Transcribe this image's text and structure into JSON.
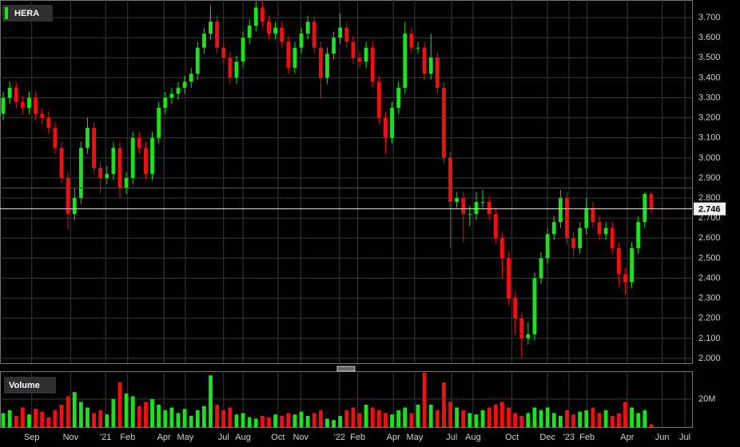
{
  "chart_data": {
    "type": "candlestick",
    "title": "HERA",
    "colors": {
      "up": "#1ee01e",
      "down": "#f01010",
      "grid": "#3a3a3a",
      "reference": "#e01010",
      "last": "#e8e8e8"
    },
    "grid": true,
    "open": [
      3.22,
      3.3,
      3.35,
      3.28,
      3.25,
      3.3,
      3.22,
      3.2,
      3.15,
      3.05,
      2.9,
      2.72,
      2.8,
      3.05,
      3.15,
      2.95,
      2.9,
      2.92,
      3.05,
      2.85,
      2.9,
      3.1,
      3.05,
      2.92,
      3.1,
      3.25,
      3.3,
      3.32,
      3.35,
      3.38,
      3.42,
      3.55,
      3.62,
      3.68,
      3.55,
      3.5,
      3.4,
      3.48,
      3.6,
      3.66,
      3.75,
      3.68,
      3.62,
      3.65,
      3.58,
      3.45,
      3.55,
      3.62,
      3.68,
      3.55,
      3.4,
      3.52,
      3.6,
      3.65,
      3.58,
      3.5,
      3.48,
      3.55,
      3.38,
      3.2,
      3.1,
      3.25,
      3.35,
      3.62,
      3.55,
      3.55,
      3.42,
      3.5,
      3.35,
      3.0,
      2.78,
      2.8,
      2.72,
      2.72,
      2.78,
      2.78,
      2.72,
      2.6,
      2.5,
      2.3,
      2.2,
      2.1,
      2.12,
      2.4,
      2.5,
      2.62,
      2.68,
      2.8,
      2.6,
      2.55,
      2.65,
      2.75,
      2.68,
      2.62,
      2.65,
      2.55,
      2.42,
      2.38,
      2.55,
      2.68,
      2.82
    ],
    "close": [
      3.3,
      3.35,
      3.28,
      3.25,
      3.3,
      3.22,
      3.2,
      3.15,
      3.05,
      2.9,
      2.72,
      2.8,
      3.05,
      3.15,
      2.95,
      2.9,
      2.92,
      3.05,
      2.85,
      2.9,
      3.1,
      3.05,
      2.92,
      3.1,
      3.25,
      3.3,
      3.32,
      3.35,
      3.38,
      3.42,
      3.55,
      3.62,
      3.68,
      3.55,
      3.5,
      3.4,
      3.48,
      3.6,
      3.66,
      3.75,
      3.68,
      3.62,
      3.65,
      3.58,
      3.45,
      3.55,
      3.62,
      3.68,
      3.55,
      3.4,
      3.52,
      3.6,
      3.65,
      3.58,
      3.5,
      3.48,
      3.55,
      3.38,
      3.2,
      3.1,
      3.25,
      3.35,
      3.62,
      3.55,
      3.55,
      3.42,
      3.5,
      3.35,
      3.0,
      2.78,
      2.8,
      2.72,
      2.72,
      2.78,
      2.78,
      2.72,
      2.6,
      2.5,
      2.3,
      2.2,
      2.1,
      2.12,
      2.4,
      2.5,
      2.62,
      2.68,
      2.8,
      2.6,
      2.55,
      2.65,
      2.75,
      2.68,
      2.62,
      2.65,
      2.55,
      2.42,
      2.38,
      2.55,
      2.68,
      2.82,
      2.746
    ],
    "high": [
      3.33,
      3.38,
      3.38,
      3.31,
      3.33,
      3.33,
      3.25,
      3.23,
      3.18,
      3.08,
      2.93,
      2.85,
      3.08,
      3.2,
      3.18,
      2.98,
      2.96,
      3.08,
      3.08,
      2.93,
      3.13,
      3.13,
      3.08,
      3.13,
      3.28,
      3.33,
      3.35,
      3.38,
      3.41,
      3.45,
      3.58,
      3.65,
      3.76,
      3.71,
      3.58,
      3.53,
      3.51,
      3.63,
      3.69,
      3.78,
      3.78,
      3.71,
      3.68,
      3.68,
      3.61,
      3.58,
      3.65,
      3.71,
      3.71,
      3.58,
      3.55,
      3.63,
      3.72,
      3.68,
      3.61,
      3.53,
      3.58,
      3.58,
      3.41,
      3.23,
      3.28,
      3.38,
      3.68,
      3.65,
      3.58,
      3.58,
      3.62,
      3.53,
      3.38,
      3.03,
      2.83,
      2.83,
      2.76,
      2.83,
      2.84,
      2.81,
      2.75,
      2.63,
      2.53,
      2.33,
      2.23,
      2.18,
      2.43,
      2.53,
      2.65,
      2.71,
      2.84,
      2.83,
      2.63,
      2.68,
      2.8,
      2.78,
      2.71,
      2.68,
      2.68,
      2.58,
      2.45,
      2.58,
      2.71,
      2.83,
      2.83
    ],
    "low": [
      3.19,
      3.27,
      3.25,
      3.22,
      3.22,
      3.19,
      3.17,
      3.12,
      3.02,
      2.87,
      2.64,
      2.69,
      2.77,
      3.02,
      2.92,
      2.82,
      2.87,
      2.89,
      2.8,
      2.82,
      2.87,
      3.02,
      2.89,
      2.89,
      3.07,
      3.22,
      3.27,
      3.29,
      3.32,
      3.35,
      3.39,
      3.52,
      3.59,
      3.52,
      3.47,
      3.37,
      3.37,
      3.45,
      3.57,
      3.63,
      3.65,
      3.59,
      3.59,
      3.55,
      3.42,
      3.42,
      3.52,
      3.59,
      3.52,
      3.3,
      3.37,
      3.49,
      3.57,
      3.55,
      3.47,
      3.45,
      3.45,
      3.35,
      3.17,
      3.02,
      3.07,
      3.22,
      3.32,
      3.52,
      3.52,
      3.39,
      3.39,
      3.32,
      2.97,
      2.55,
      2.75,
      2.58,
      2.66,
      2.69,
      2.75,
      2.69,
      2.57,
      2.4,
      2.27,
      2.12,
      2.0,
      2.07,
      2.09,
      2.37,
      2.47,
      2.59,
      2.65,
      2.57,
      2.5,
      2.52,
      2.62,
      2.65,
      2.59,
      2.59,
      2.52,
      2.36,
      2.32,
      2.35,
      2.52,
      2.65,
      2.72
    ],
    "ylim": [
      1.976,
      3.788
    ],
    "yticks": [
      {
        "value": 2.0,
        "label": "2.000"
      },
      {
        "value": 2.1,
        "label": "2.100"
      },
      {
        "value": 2.2,
        "label": "2.200"
      },
      {
        "value": 2.3,
        "label": "2.300"
      },
      {
        "value": 2.4,
        "label": "2.400"
      },
      {
        "value": 2.5,
        "label": "2.500"
      },
      {
        "value": 2.6,
        "label": "2.600"
      },
      {
        "value": 2.7,
        "label": "2.700"
      },
      {
        "value": 2.8,
        "label": "2.800"
      },
      {
        "value": 2.9,
        "label": "2.900"
      },
      {
        "value": 3.0,
        "label": "3.000"
      },
      {
        "value": 3.1,
        "label": "3.100"
      },
      {
        "value": 3.2,
        "label": "3.200"
      },
      {
        "value": 3.3,
        "label": "3.300"
      },
      {
        "value": 3.4,
        "label": "3.400"
      },
      {
        "value": 3.5,
        "label": "3.500"
      },
      {
        "value": 3.6,
        "label": "3.600"
      },
      {
        "value": 3.7,
        "label": "3.700"
      }
    ],
    "xlim": [
      -0.5,
      106.3
    ],
    "xticks": [
      {
        "value": 4.4,
        "label": "Sep"
      },
      {
        "value": 10.4,
        "label": "Nov"
      },
      {
        "value": 15.8,
        "label": "'21"
      },
      {
        "value": 19.2,
        "label": "Feb"
      },
      {
        "value": 24.8,
        "label": "Apr"
      },
      {
        "value": 28.1,
        "label": "May"
      },
      {
        "value": 34.0,
        "label": "Jul"
      },
      {
        "value": 37.0,
        "label": "Aug"
      },
      {
        "value": 42.4,
        "label": "Oct"
      },
      {
        "value": 45.9,
        "label": "Nov"
      },
      {
        "value": 51.9,
        "label": "'22"
      },
      {
        "value": 54.7,
        "label": "Feb"
      },
      {
        "value": 60.2,
        "label": "Apr"
      },
      {
        "value": 63.5,
        "label": "May"
      },
      {
        "value": 69.2,
        "label": "Jul"
      },
      {
        "value": 72.5,
        "label": "Aug"
      },
      {
        "value": 78.5,
        "label": "Oct"
      },
      {
        "value": 84.0,
        "label": "Dec"
      },
      {
        "value": 87.3,
        "label": "'23"
      },
      {
        "value": 90.1,
        "label": "Feb"
      },
      {
        "value": 96.3,
        "label": "Apr"
      },
      {
        "value": 101.7,
        "label": "Jun"
      },
      {
        "value": 105.2,
        "label": "Jul"
      }
    ],
    "reference_line": 2.85,
    "last_price": 2.746,
    "volume": {
      "label": "Volume",
      "values": [
        10000000,
        12000000,
        8000000,
        14000000,
        9000000,
        13000000,
        11000000,
        7000000,
        12000000,
        16000000,
        22000000,
        25000000,
        18000000,
        14000000,
        10000000,
        12000000,
        9000000,
        20000000,
        32000000,
        24000000,
        22000000,
        15000000,
        18000000,
        20000000,
        16000000,
        12000000,
        14000000,
        10000000,
        13000000,
        8000000,
        12000000,
        15000000,
        37000000,
        16000000,
        12000000,
        14000000,
        9000000,
        10000000,
        7000000,
        6000000,
        8000000,
        7000000,
        9000000,
        8000000,
        10000000,
        9000000,
        11000000,
        8000000,
        10000000,
        12000000,
        6000000,
        5000000,
        8000000,
        12000000,
        14000000,
        10000000,
        16000000,
        14000000,
        12000000,
        10000000,
        9000000,
        12000000,
        14000000,
        10000000,
        16000000,
        39000000,
        16000000,
        12000000,
        32000000,
        18000000,
        14000000,
        12000000,
        10000000,
        9000000,
        12000000,
        14000000,
        16000000,
        18000000,
        14000000,
        10000000,
        8000000,
        10000000,
        14000000,
        12000000,
        14000000,
        10000000,
        8000000,
        12000000,
        9000000,
        11000000,
        12000000,
        14000000,
        10000000,
        12000000,
        8000000,
        10000000,
        18000000,
        14000000,
        10000000,
        12000000,
        2000000
      ],
      "ylim": [
        0,
        40000000
      ],
      "yticks": [
        {
          "value": 20000000,
          "label": "20M"
        }
      ]
    }
  }
}
